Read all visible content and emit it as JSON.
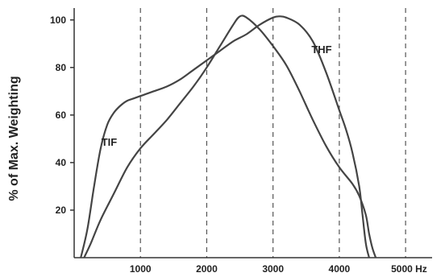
{
  "chart_data": {
    "type": "line",
    "ylabel": "% of Max. Weighting",
    "xlabel": "",
    "x_unit": "Hz",
    "xlim": [
      0,
      5400
    ],
    "ylim": [
      0,
      105
    ],
    "x_ticks": [
      1000,
      2000,
      3000,
      4000,
      5000
    ],
    "x_tick_labels": [
      "1000",
      "2000",
      "3000",
      "4000",
      "5000 Hz"
    ],
    "y_ticks": [
      20,
      40,
      60,
      80,
      100
    ],
    "y_tick_labels": [
      "20",
      "40",
      "60",
      "80",
      "100"
    ],
    "grid": "vertical dashed at x ticks",
    "series": [
      {
        "name": "THF",
        "color": "#444444",
        "x": [
          100,
          200,
          300,
          400,
          500,
          600,
          700,
          800,
          900,
          1000,
          1200,
          1400,
          1600,
          1800,
          2000,
          2200,
          2400,
          2600,
          2800,
          3000,
          3100,
          3200,
          3400,
          3600,
          3800,
          4000,
          4100,
          4200,
          4300,
          4350,
          4400,
          4450
        ],
        "y": [
          0,
          12,
          30,
          46,
          56,
          61,
          64,
          66,
          67,
          68,
          70,
          72,
          75,
          79,
          83,
          87,
          91,
          94,
          98,
          101,
          101.5,
          101,
          98,
          91,
          78,
          62,
          54,
          44,
          30,
          18,
          6,
          0
        ]
      },
      {
        "name": "TIF",
        "color": "#444444",
        "x": [
          150,
          250,
          400,
          600,
          800,
          1000,
          1200,
          1400,
          1600,
          1800,
          2000,
          2200,
          2400,
          2500,
          2600,
          2800,
          3000,
          3200,
          3400,
          3600,
          3800,
          4000,
          4200,
          4300,
          4400,
          4450,
          4500,
          4550
        ],
        "y": [
          0,
          6,
          16,
          27,
          38,
          46,
          52,
          58,
          65,
          72,
          80,
          89,
          98,
          101.5,
          101,
          96,
          89,
          81,
          70,
          58,
          47,
          38,
          31,
          26,
          18,
          10,
          4,
          0
        ]
      }
    ],
    "annotations": [
      {
        "text": "THF",
        "x": 3580,
        "y": 86
      },
      {
        "text": "TIF",
        "x": 410,
        "y": 47
      }
    ]
  }
}
